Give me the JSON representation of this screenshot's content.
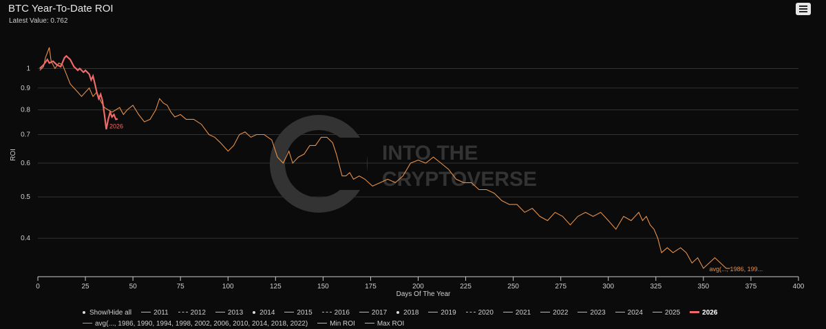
{
  "header": {
    "title": "BTC Year-To-Date ROI",
    "subtitle": "Latest Value: 0.762"
  },
  "watermark": {
    "line1": "INTO THE",
    "line2": "CRYPTOVERSE"
  },
  "legend": {
    "row1": [
      {
        "label": "Show/Hide all",
        "style": "dot"
      },
      {
        "label": "2011",
        "style": "solid"
      },
      {
        "label": "2012",
        "style": "dash"
      },
      {
        "label": "2013",
        "style": "solid"
      },
      {
        "label": "2014",
        "style": "dot"
      },
      {
        "label": "2015",
        "style": "solid"
      },
      {
        "label": "2016",
        "style": "dash"
      },
      {
        "label": "2017",
        "style": "solid"
      },
      {
        "label": "2018",
        "style": "dot"
      },
      {
        "label": "2019",
        "style": "solid"
      },
      {
        "label": "2020",
        "style": "dash"
      },
      {
        "label": "2021",
        "style": "solid"
      },
      {
        "label": "2022",
        "style": "solid"
      },
      {
        "label": "2023",
        "style": "solid"
      },
      {
        "label": "2024",
        "style": "solid"
      },
      {
        "label": "2025",
        "style": "solid"
      },
      {
        "label": "2026",
        "style": "bold",
        "active": true
      }
    ],
    "row2": [
      {
        "label": "avg(..., 1986, 1990, 1994, 1998, 2002, 2006, 2010, 2014, 2018, 2022)",
        "style": "avg"
      },
      {
        "label": "Min ROI",
        "style": "solid"
      },
      {
        "label": "Max ROI",
        "style": "solid"
      }
    ]
  },
  "chart_data": {
    "type": "line",
    "title": "BTC Year-To-Date ROI",
    "xlabel": "Days Of The Year",
    "ylabel": "ROI",
    "xlim": [
      0,
      400
    ],
    "ylim_log": [
      0.325,
      1.18
    ],
    "y_scale": "log",
    "xticks": [
      0,
      25,
      50,
      75,
      100,
      125,
      150,
      175,
      200,
      225,
      250,
      275,
      300,
      325,
      350,
      375,
      400
    ],
    "yticks": [
      0.4,
      0.5,
      0.6,
      0.7,
      0.8,
      0.9,
      1
    ],
    "colors": {
      "avg": "#e8924a",
      "current": "#f06a6a"
    },
    "series": [
      {
        "name": "avg(..., 1986, 1990, 1994, 1998, 2002, 2006, 2010, 2014, 2018, 2022)",
        "label": "avg(..., 1986, 199...",
        "x": [
          1,
          3,
          4,
          6,
          7,
          9,
          11,
          13,
          15,
          17,
          19,
          21,
          23,
          25,
          27,
          29,
          31,
          33,
          35,
          37,
          39,
          41,
          43,
          45,
          47,
          50,
          53,
          56,
          59,
          62,
          64,
          66,
          68,
          70,
          72,
          75,
          78,
          82,
          86,
          90,
          93,
          96,
          100,
          103,
          106,
          109,
          112,
          115,
          119,
          123,
          126,
          129,
          132,
          134,
          137,
          140,
          143,
          146,
          149,
          152,
          155,
          157,
          160,
          162,
          164,
          166,
          169,
          172,
          176,
          180,
          184,
          188,
          192,
          196,
          200,
          204,
          208,
          212,
          216,
          220,
          224,
          228,
          232,
          236,
          240,
          244,
          248,
          252,
          256,
          260,
          264,
          268,
          272,
          276,
          280,
          284,
          288,
          292,
          296,
          300,
          304,
          308,
          312,
          316,
          318,
          320,
          322,
          324,
          326,
          328,
          331,
          334,
          338,
          341,
          344,
          347,
          350,
          353,
          356,
          359,
          362,
          364
        ],
        "y": [
          0.99,
          1.01,
          1.06,
          1.12,
          1.04,
          1.0,
          1.03,
          1.02,
          0.97,
          0.92,
          0.9,
          0.88,
          0.86,
          0.88,
          0.9,
          0.86,
          0.88,
          0.84,
          0.81,
          0.8,
          0.79,
          0.8,
          0.81,
          0.78,
          0.8,
          0.82,
          0.78,
          0.75,
          0.76,
          0.8,
          0.85,
          0.83,
          0.82,
          0.79,
          0.77,
          0.78,
          0.76,
          0.76,
          0.74,
          0.7,
          0.69,
          0.67,
          0.64,
          0.66,
          0.7,
          0.71,
          0.69,
          0.7,
          0.7,
          0.68,
          0.62,
          0.6,
          0.64,
          0.6,
          0.62,
          0.63,
          0.66,
          0.66,
          0.69,
          0.69,
          0.67,
          0.63,
          0.56,
          0.56,
          0.57,
          0.55,
          0.56,
          0.55,
          0.53,
          0.54,
          0.55,
          0.54,
          0.56,
          0.6,
          0.61,
          0.6,
          0.62,
          0.6,
          0.58,
          0.55,
          0.54,
          0.54,
          0.52,
          0.52,
          0.51,
          0.49,
          0.48,
          0.48,
          0.46,
          0.47,
          0.45,
          0.44,
          0.46,
          0.45,
          0.43,
          0.45,
          0.46,
          0.45,
          0.46,
          0.44,
          0.42,
          0.45,
          0.44,
          0.46,
          0.44,
          0.45,
          0.43,
          0.42,
          0.4,
          0.37,
          0.38,
          0.37,
          0.38,
          0.37,
          0.35,
          0.36,
          0.34,
          0.35,
          0.36,
          0.35,
          0.34,
          0.34
        ]
      },
      {
        "name": "2026",
        "label": "2026",
        "x": [
          1,
          3,
          5,
          6,
          8,
          10,
          12,
          14,
          15,
          16,
          17,
          18,
          19,
          20,
          21,
          22,
          24,
          25,
          27,
          28,
          29,
          30,
          31,
          32,
          33,
          34,
          35,
          36,
          37,
          38,
          39,
          40,
          41,
          42
        ],
        "y": [
          1.0,
          1.02,
          1.05,
          1.03,
          1.04,
          1.02,
          1.01,
          1.06,
          1.07,
          1.06,
          1.05,
          1.03,
          1.01,
          1.0,
          0.99,
          1.0,
          0.98,
          0.99,
          0.97,
          0.94,
          0.96,
          0.92,
          0.88,
          0.85,
          0.87,
          0.84,
          0.78,
          0.72,
          0.76,
          0.79,
          0.77,
          0.78,
          0.76,
          0.762
        ]
      }
    ],
    "grid": true,
    "legend_position": "bottom"
  }
}
